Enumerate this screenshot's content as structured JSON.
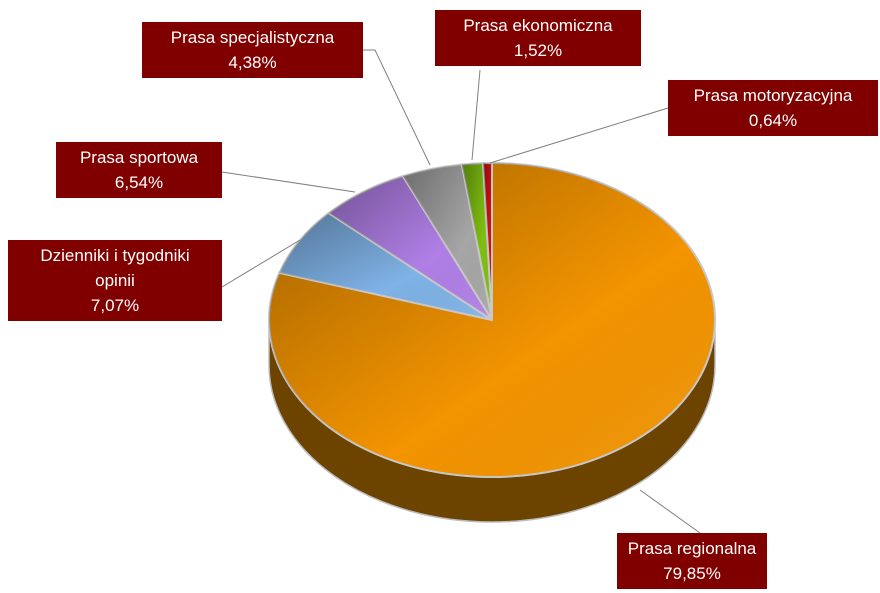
{
  "chart_data": {
    "type": "pie",
    "categories": [
      "Prasa regionalna",
      "Dzienniki i tygodniki opinii",
      "Prasa sportowa",
      "Prasa specjalistyczna",
      "Prasa ekonomiczna",
      "Prasa motoryzacyjna"
    ],
    "values": [
      79.85,
      7.07,
      6.54,
      4.38,
      1.52,
      0.64
    ],
    "value_labels": [
      "79,85%",
      "7,07%",
      "6,54%",
      "4,38%",
      "1,52%",
      "0,64%"
    ],
    "colors": [
      "#f39400",
      "#7fb2e6",
      "#b07fe6",
      "#a6a6a6",
      "#7fbf10",
      "#d01010"
    ]
  }
}
